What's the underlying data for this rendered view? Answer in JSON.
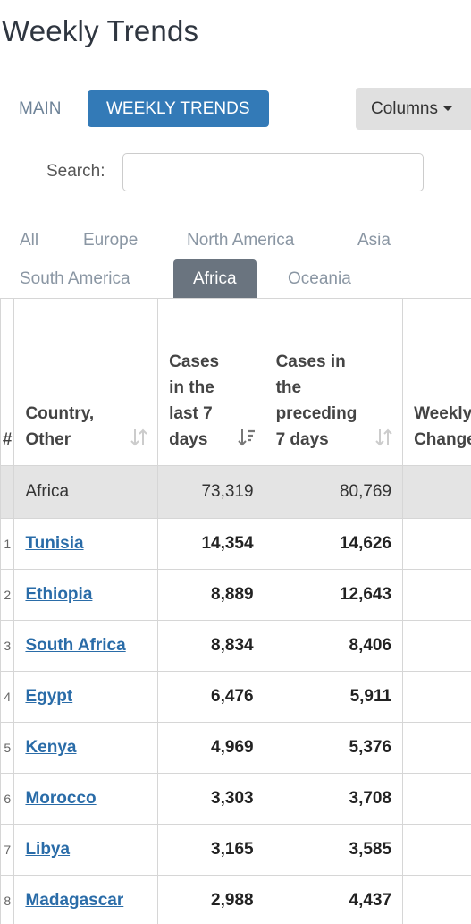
{
  "header": {
    "title": "Weekly Trends"
  },
  "nav": {
    "tabs": [
      "MAIN",
      "WEEKLY TRENDS"
    ],
    "active": 1,
    "columns_button": "Columns"
  },
  "search": {
    "label": "Search:"
  },
  "regions": {
    "items": [
      "All",
      "Europe",
      "North America",
      "Asia",
      "South America",
      "Africa",
      "Oceania"
    ],
    "active": 5
  },
  "table": {
    "headers": [
      "#",
      "Country, Other",
      "Cases in the last 7 days",
      "Cases in the preceding 7 days",
      "Weekly % Change"
    ],
    "total": [
      "Africa",
      "73,319",
      "80,769"
    ],
    "rows": [
      [
        "1",
        "Tunisia",
        "14,354",
        "14,626"
      ],
      [
        "2",
        "Ethiopia",
        "8,889",
        "12,643"
      ],
      [
        "3",
        "South Africa",
        "8,834",
        "8,406"
      ],
      [
        "4",
        "Egypt",
        "6,476",
        "5,911"
      ],
      [
        "5",
        "Kenya",
        "4,969",
        "5,376"
      ],
      [
        "6",
        "Morocco",
        "3,303",
        "3,708"
      ],
      [
        "7",
        "Libya",
        "3,165",
        "3,585"
      ],
      [
        "8",
        "Madagascar",
        "2,988",
        "4,437"
      ]
    ]
  }
}
